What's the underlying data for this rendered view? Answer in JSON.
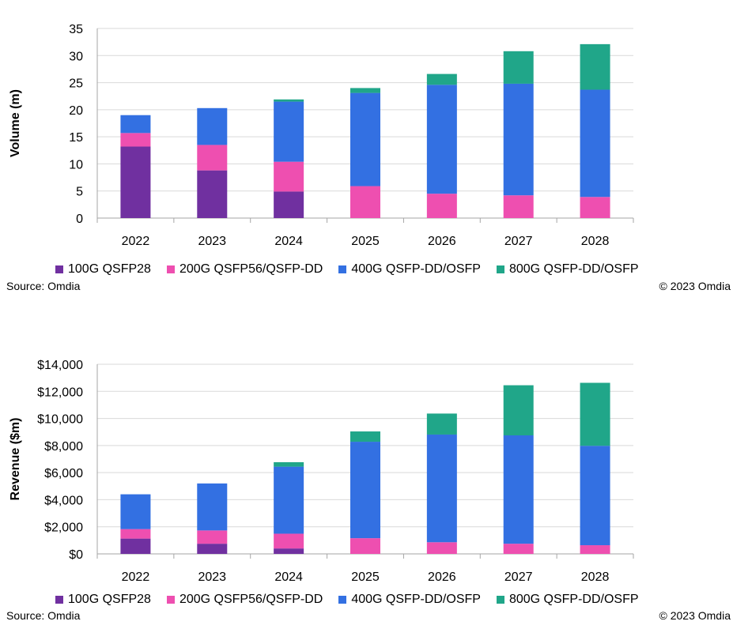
{
  "colors": {
    "100G QSFP28": "#7030A0",
    "200G QSFP56/QSFP-DD": "#EE4FB0",
    "400G QSFP-DD/OSFP": "#3370E2",
    "800G QSFP-DD/OSFP": "#20A689",
    "gridline": "#D9D9D9",
    "axis": "#A6A6A6"
  },
  "chart_data": [
    {
      "type": "bar",
      "stacked": true,
      "title": "",
      "xlabel": "",
      "ylabel": "Volume (m)",
      "categories": [
        "2022",
        "2023",
        "2024",
        "2025",
        "2026",
        "2027",
        "2028"
      ],
      "ylim": [
        0,
        35
      ],
      "yticks": [
        0,
        5,
        10,
        15,
        20,
        25,
        30,
        35
      ],
      "ytick_labels": [
        "0",
        "5",
        "10",
        "15",
        "20",
        "25",
        "30",
        "35"
      ],
      "grid": true,
      "legend_placement": "bottom",
      "series": [
        {
          "name": "100G QSFP28",
          "values": [
            13.2,
            8.8,
            4.9,
            0,
            0,
            0,
            0
          ]
        },
        {
          "name": "200G QSFP56/QSFP-DD",
          "values": [
            2.5,
            4.7,
            5.5,
            5.9,
            4.5,
            4.2,
            3.9
          ]
        },
        {
          "name": "400G QSFP-DD/OSFP",
          "values": [
            3.3,
            6.8,
            11.1,
            17.2,
            20.1,
            20.6,
            19.8
          ]
        },
        {
          "name": "800G QSFP-DD/OSFP",
          "values": [
            0,
            0,
            0.4,
            0.9,
            2.0,
            6.0,
            8.4
          ]
        }
      ],
      "source": "Source: Omdia",
      "copyright": "© 2023 Omdia"
    },
    {
      "type": "bar",
      "stacked": true,
      "title": "",
      "xlabel": "",
      "ylabel": "Revenue ($m)",
      "categories": [
        "2022",
        "2023",
        "2024",
        "2025",
        "2026",
        "2027",
        "2028"
      ],
      "ylim": [
        0,
        14000
      ],
      "yticks": [
        0,
        2000,
        4000,
        6000,
        8000,
        10000,
        12000,
        14000
      ],
      "ytick_labels": [
        "$0",
        "$2,000",
        "$4,000",
        "$6,000",
        "$8,000",
        "$10,000",
        "$12,000",
        "$14,000"
      ],
      "grid": true,
      "legend_placement": "bottom",
      "series": [
        {
          "name": "100G QSFP28",
          "values": [
            1130,
            750,
            400,
            0,
            0,
            0,
            0
          ]
        },
        {
          "name": "200G QSFP56/QSFP-DD",
          "values": [
            700,
            980,
            1090,
            1160,
            860,
            750,
            640
          ]
        },
        {
          "name": "400G QSFP-DD/OSFP",
          "values": [
            2570,
            3470,
            4950,
            7120,
            7950,
            8000,
            7340
          ]
        },
        {
          "name": "800G QSFP-DD/OSFP",
          "values": [
            0,
            0,
            330,
            760,
            1550,
            3700,
            4650
          ]
        }
      ],
      "source": "Source: Omdia",
      "copyright": "© 2023 Omdia"
    }
  ]
}
